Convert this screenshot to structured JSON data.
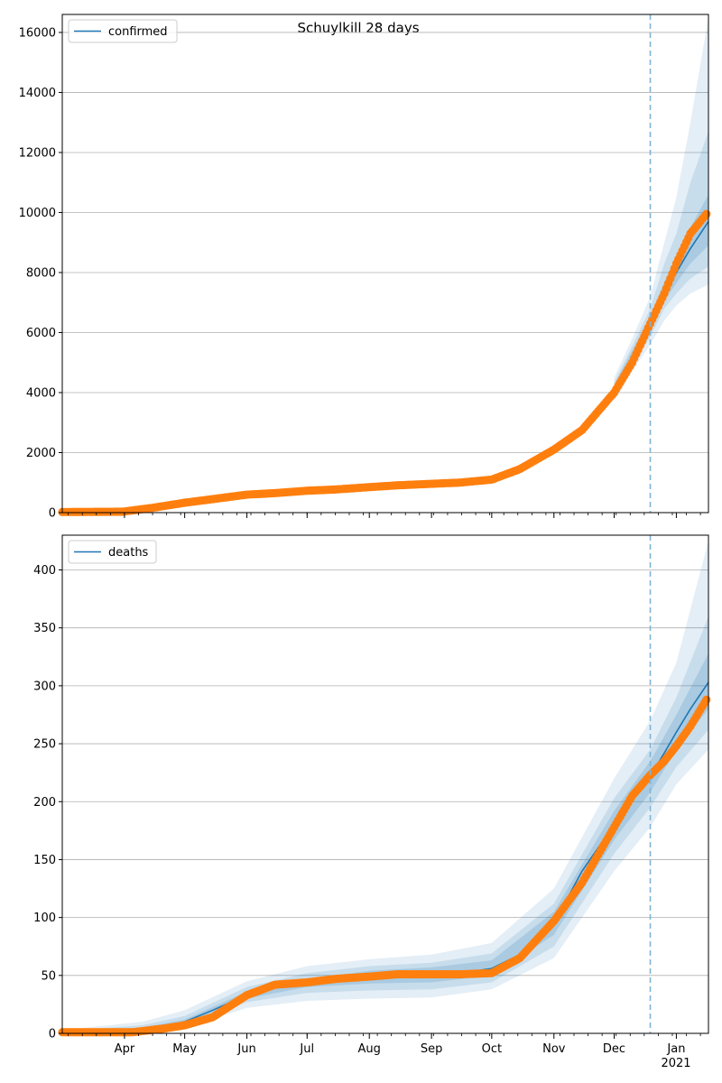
{
  "chart_data": {
    "type": "line",
    "title": "Schuylkill 28 days",
    "x_range": [
      "2020-03-01",
      "2021-01-17"
    ],
    "forecast_start": "2020-12-19",
    "x_ticks": [
      "Apr",
      "May",
      "Jun",
      "Jul",
      "Aug",
      "Sep",
      "Oct",
      "Nov",
      "Dec",
      "Jan"
    ],
    "x_tick_dates": [
      "2020-04-01",
      "2020-05-01",
      "2020-06-01",
      "2020-07-01",
      "2020-08-01",
      "2020-09-01",
      "2020-10-01",
      "2020-11-01",
      "2020-12-01",
      "2021-01-01"
    ],
    "x_year_label": "2021",
    "grid": true,
    "colors": {
      "model": "#1f77b4",
      "observed": "#ff7f0e",
      "band": "#1f77b4",
      "forecast_line": "#7fb4d6"
    },
    "panels": [
      {
        "legend": "confirmed",
        "legend_position": "top-left",
        "ylim": [
          0,
          16600
        ],
        "y_ticks": [
          "0",
          "2000",
          "4000",
          "6000",
          "8000",
          "10000",
          "12000",
          "14000",
          "16000"
        ],
        "y_tick_values": [
          0,
          2000,
          4000,
          6000,
          8000,
          10000,
          12000,
          14000,
          16000
        ],
        "model_line": [
          [
            "2020-03-01",
            20
          ],
          [
            "2020-03-31",
            40
          ],
          [
            "2020-04-15",
            160
          ],
          [
            "2020-05-01",
            330
          ],
          [
            "2020-05-15",
            460
          ],
          [
            "2020-06-01",
            600
          ],
          [
            "2020-06-15",
            660
          ],
          [
            "2020-07-01",
            730
          ],
          [
            "2020-07-15",
            770
          ],
          [
            "2020-08-01",
            850
          ],
          [
            "2020-08-15",
            910
          ],
          [
            "2020-09-01",
            970
          ],
          [
            "2020-09-15",
            1010
          ],
          [
            "2020-10-01",
            1120
          ],
          [
            "2020-10-15",
            1470
          ],
          [
            "2020-11-01",
            2100
          ],
          [
            "2020-11-15",
            2800
          ],
          [
            "2020-12-01",
            4100
          ],
          [
            "2020-12-10",
            5200
          ],
          [
            "2020-12-19",
            6300
          ],
          [
            "2020-12-26",
            7300
          ],
          [
            "2021-01-01",
            8000
          ],
          [
            "2021-01-08",
            8800
          ],
          [
            "2021-01-17",
            9700
          ]
        ],
        "band_outer": [
          [
            "2020-12-01",
            3700,
            4500
          ],
          [
            "2020-12-10",
            4700,
            5800
          ],
          [
            "2020-12-19",
            5600,
            7200
          ],
          [
            "2020-12-26",
            6400,
            9000
          ],
          [
            "2021-01-01",
            6900,
            10500
          ],
          [
            "2021-01-08",
            7300,
            13000
          ],
          [
            "2021-01-17",
            7600,
            16500
          ]
        ],
        "band_mid": [
          [
            "2020-12-01",
            3850,
            4350
          ],
          [
            "2020-12-10",
            4900,
            5550
          ],
          [
            "2020-12-19",
            5850,
            6800
          ],
          [
            "2020-12-26",
            6800,
            8300
          ],
          [
            "2021-01-01",
            7300,
            9300
          ],
          [
            "2021-01-08",
            7800,
            11000
          ],
          [
            "2021-01-17",
            8200,
            12700
          ]
        ],
        "band_inner": [
          [
            "2020-12-01",
            3950,
            4250
          ],
          [
            "2020-12-10",
            5050,
            5400
          ],
          [
            "2020-12-19",
            6050,
            6550
          ],
          [
            "2020-12-26",
            7050,
            7700
          ],
          [
            "2021-01-01",
            7650,
            8450
          ],
          [
            "2021-01-08",
            8300,
            9500
          ],
          [
            "2021-01-17",
            8900,
            10600
          ]
        ],
        "observed": [
          [
            "2020-03-01",
            20
          ],
          [
            "2020-03-31",
            30
          ],
          [
            "2020-04-15",
            160
          ],
          [
            "2020-05-01",
            330
          ],
          [
            "2020-05-15",
            450
          ],
          [
            "2020-06-01",
            600
          ],
          [
            "2020-06-15",
            650
          ],
          [
            "2020-07-01",
            730
          ],
          [
            "2020-07-15",
            770
          ],
          [
            "2020-08-01",
            850
          ],
          [
            "2020-08-15",
            910
          ],
          [
            "2020-09-01",
            960
          ],
          [
            "2020-09-15",
            1000
          ],
          [
            "2020-10-01",
            1100
          ],
          [
            "2020-10-15",
            1450
          ],
          [
            "2020-11-01",
            2100
          ],
          [
            "2020-11-15",
            2750
          ],
          [
            "2020-12-01",
            4000
          ],
          [
            "2020-12-10",
            5000
          ],
          [
            "2020-12-19",
            6300
          ],
          [
            "2020-12-26",
            7300
          ],
          [
            "2021-01-01",
            8300
          ],
          [
            "2021-01-08",
            9300
          ],
          [
            "2021-01-16",
            9950
          ]
        ]
      },
      {
        "legend": "deaths",
        "legend_position": "top-left",
        "ylim": [
          0,
          430
        ],
        "y_ticks": [
          "0",
          "50",
          "100",
          "150",
          "200",
          "250",
          "300",
          "350",
          "400"
        ],
        "y_tick_values": [
          0,
          50,
          100,
          150,
          200,
          250,
          300,
          350,
          400
        ],
        "model_line": [
          [
            "2020-03-01",
            1
          ],
          [
            "2020-04-05",
            2
          ],
          [
            "2020-04-20",
            5
          ],
          [
            "2020-05-01",
            10
          ],
          [
            "2020-05-15",
            20
          ],
          [
            "2020-06-01",
            33
          ],
          [
            "2020-06-15",
            41
          ],
          [
            "2020-07-01",
            44
          ],
          [
            "2020-07-15",
            47
          ],
          [
            "2020-08-01",
            49
          ],
          [
            "2020-08-15",
            50
          ],
          [
            "2020-09-01",
            51
          ],
          [
            "2020-09-15",
            52
          ],
          [
            "2020-10-01",
            56
          ],
          [
            "2020-10-15",
            68
          ],
          [
            "2020-11-01",
            95
          ],
          [
            "2020-11-15",
            140
          ],
          [
            "2020-12-01",
            180
          ],
          [
            "2020-12-10",
            202
          ],
          [
            "2020-12-19",
            222
          ],
          [
            "2020-12-26",
            242
          ],
          [
            "2021-01-01",
            260
          ],
          [
            "2021-01-08",
            280
          ],
          [
            "2021-01-17",
            303
          ]
        ],
        "band_outer": [
          [
            "2020-03-01",
            0,
            3
          ],
          [
            "2020-04-10",
            0,
            10
          ],
          [
            "2020-05-01",
            5,
            20
          ],
          [
            "2020-06-01",
            22,
            45
          ],
          [
            "2020-07-01",
            28,
            58
          ],
          [
            "2020-08-01",
            30,
            64
          ],
          [
            "2020-09-01",
            31,
            68
          ],
          [
            "2020-10-01",
            38,
            78
          ],
          [
            "2020-11-01",
            65,
            125
          ],
          [
            "2020-12-01",
            140,
            220
          ],
          [
            "2020-12-19",
            178,
            270
          ],
          [
            "2021-01-01",
            215,
            320
          ],
          [
            "2021-01-17",
            245,
            425
          ]
        ],
        "band_mid": [
          [
            "2020-03-01",
            0,
            2
          ],
          [
            "2020-04-10",
            1,
            7
          ],
          [
            "2020-05-01",
            7,
            15
          ],
          [
            "2020-06-01",
            27,
            40
          ],
          [
            "2020-07-01",
            35,
            52
          ],
          [
            "2020-08-01",
            37,
            58
          ],
          [
            "2020-09-01",
            38,
            61
          ],
          [
            "2020-10-01",
            44,
            69
          ],
          [
            "2020-11-01",
            75,
            112
          ],
          [
            "2020-12-01",
            155,
            203
          ],
          [
            "2020-12-19",
            195,
            245
          ],
          [
            "2021-01-01",
            230,
            290
          ],
          [
            "2021-01-17",
            262,
            360
          ]
        ],
        "band_inner": [
          [
            "2020-03-01",
            1,
            1
          ],
          [
            "2020-04-10",
            2,
            5
          ],
          [
            "2020-05-01",
            8,
            12
          ],
          [
            "2020-06-01",
            30,
            36
          ],
          [
            "2020-07-01",
            40,
            47
          ],
          [
            "2020-08-01",
            43,
            54
          ],
          [
            "2020-09-01",
            44,
            57
          ],
          [
            "2020-10-01",
            50,
            63
          ],
          [
            "2020-11-01",
            85,
            105
          ],
          [
            "2020-12-01",
            167,
            192
          ],
          [
            "2020-12-19",
            208,
            235
          ],
          [
            "2021-01-01",
            245,
            275
          ],
          [
            "2021-01-17",
            280,
            328
          ]
        ],
        "observed": [
          [
            "2020-03-01",
            1
          ],
          [
            "2020-04-05",
            1
          ],
          [
            "2020-04-20",
            4
          ],
          [
            "2020-05-01",
            7
          ],
          [
            "2020-05-15",
            14
          ],
          [
            "2020-06-01",
            33
          ],
          [
            "2020-06-15",
            42
          ],
          [
            "2020-07-01",
            44
          ],
          [
            "2020-07-15",
            47
          ],
          [
            "2020-08-01",
            49
          ],
          [
            "2020-08-15",
            51
          ],
          [
            "2020-09-01",
            51
          ],
          [
            "2020-09-15",
            51
          ],
          [
            "2020-10-01",
            52
          ],
          [
            "2020-10-15",
            65
          ],
          [
            "2020-11-01",
            97
          ],
          [
            "2020-11-15",
            130
          ],
          [
            "2020-12-01",
            178
          ],
          [
            "2020-12-10",
            205
          ],
          [
            "2020-12-19",
            223
          ],
          [
            "2020-12-26",
            235
          ],
          [
            "2021-01-01",
            248
          ],
          [
            "2021-01-08",
            265
          ],
          [
            "2021-01-16",
            288
          ]
        ]
      }
    ]
  }
}
